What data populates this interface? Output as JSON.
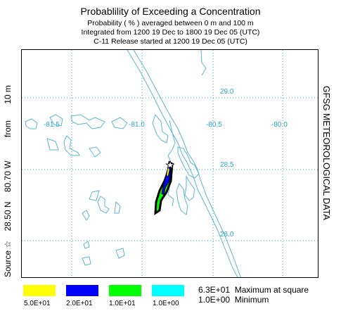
{
  "title": "Probablility of Exceeding a Concentration",
  "subtitle_lines": [
    "Probability  ( % ) averaged between     0 m and   100 m",
    "Integrated from 1200 19 Dec to 1800 19 Dec 05 (UTC)",
    "C-11 Release started at 1200 19 Dec 05 (UTC)"
  ],
  "left_label": {
    "source": "Source ☆",
    "lat": "28.50 N",
    "lon": "80.70 W",
    "from": "from",
    "height": "10 m"
  },
  "right_label": "GFSG METEOROLOGICAL DATA",
  "map": {
    "lon_labels": [
      "-81.5",
      "-81.0",
      "-80.5",
      "-80.0"
    ],
    "lat_labels": [
      "29.0",
      "28.5",
      "28.0"
    ],
    "grid_color": "#2aa6c4",
    "coast_color": "#5bb6d6"
  },
  "legend": {
    "swatches": [
      {
        "color": "#ffff00",
        "label": "5.0E+01"
      },
      {
        "color": "#0000ff",
        "label": "2.0E+01"
      },
      {
        "color": "#00ff00",
        "label": "1.0E+01"
      },
      {
        "color": "#00ffff",
        "label": "1.0E+00"
      }
    ],
    "max_value": "6.3E+01",
    "max_text": "Maximum at square",
    "min_value": "1.0E+00",
    "min_text": "Minimum"
  }
}
